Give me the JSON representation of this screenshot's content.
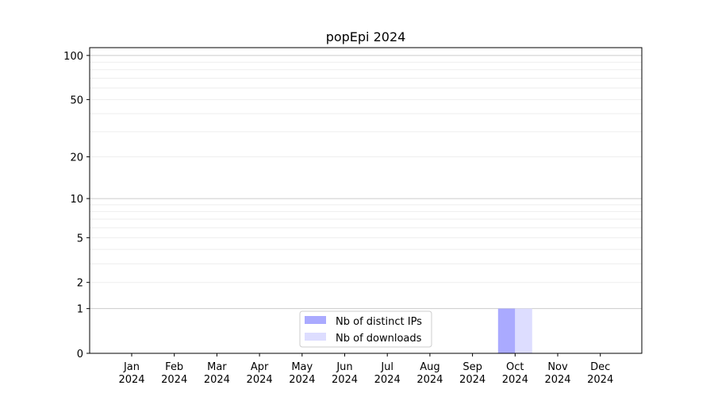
{
  "chart_data": {
    "type": "bar",
    "title": "popEpi 2024",
    "xlabel": "",
    "ylabel": "",
    "y_scale": "log10(1+y)",
    "ylim": [
      0,
      113
    ],
    "yticks": [
      0,
      1,
      2,
      5,
      10,
      20,
      50,
      100
    ],
    "ytick_labels": [
      "0",
      "1",
      "2",
      "5",
      "10",
      "20",
      "50",
      "100"
    ],
    "grid": true,
    "categories": [
      [
        "Jan",
        "2024"
      ],
      [
        "Feb",
        "2024"
      ],
      [
        "Mar",
        "2024"
      ],
      [
        "Apr",
        "2024"
      ],
      [
        "May",
        "2024"
      ],
      [
        "Jun",
        "2024"
      ],
      [
        "Jul",
        "2024"
      ],
      [
        "Aug",
        "2024"
      ],
      [
        "Sep",
        "2024"
      ],
      [
        "Oct",
        "2024"
      ],
      [
        "Nov",
        "2024"
      ],
      [
        "Dec",
        "2024"
      ]
    ],
    "series": [
      {
        "name": "Nb of distinct IPs",
        "color": "#aaaaff",
        "values": [
          0,
          0,
          0,
          0,
          0,
          0,
          0,
          0,
          0,
          1,
          0,
          0
        ]
      },
      {
        "name": "Nb of downloads",
        "color": "#ddddff",
        "values": [
          0,
          0,
          0,
          0,
          0,
          0,
          0,
          0,
          0,
          1,
          0,
          0
        ]
      }
    ],
    "legend_position": "bottom-center"
  }
}
